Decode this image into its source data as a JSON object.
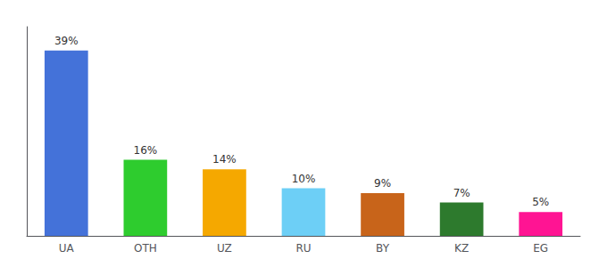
{
  "chart_data": {
    "type": "bar",
    "categories": [
      "UA",
      "OTH",
      "UZ",
      "RU",
      "BY",
      "KZ",
      "EG"
    ],
    "values": [
      39,
      16,
      14,
      10,
      9,
      7,
      5
    ],
    "value_labels": [
      "39%",
      "16%",
      "14%",
      "10%",
      "9%",
      "7%",
      "5%"
    ],
    "colors": [
      "#4472d9",
      "#2ecc2e",
      "#f5a800",
      "#6dcff6",
      "#c8641a",
      "#2d7a2d",
      "#ff1493"
    ],
    "ylim": [
      0,
      44
    ],
    "data_labels": true,
    "tick_labels": "x",
    "grid": false
  }
}
